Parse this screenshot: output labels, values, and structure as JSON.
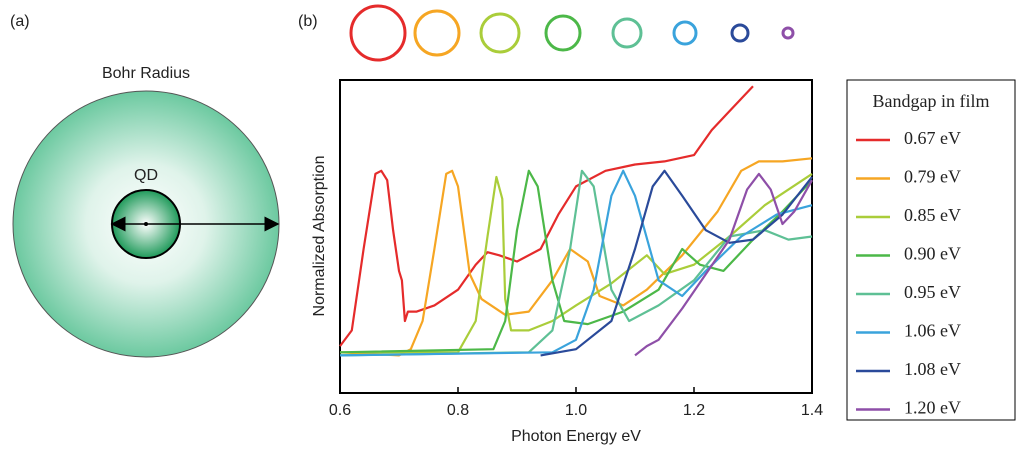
{
  "panel_a": {
    "label": "(a)",
    "title": "Bohr Radius",
    "inner_label": "QD"
  },
  "chart_data": {
    "type": "line",
    "panel_label": "(b)",
    "x_label": "Photon Energy  eV",
    "y_label": "Normalized  Absorption",
    "legend_title": "Bandgap in film",
    "legend": "right",
    "xlim": [
      0.6,
      1.4
    ],
    "ylim": [
      0,
      1
    ],
    "xticks": [
      0.6,
      0.8,
      {
        "value": 1,
        "label": "1.0"
      },
      1.2,
      1.4
    ],
    "series": [
      {
        "name": "0.67 eV",
        "color": "#e52b2b",
        "x": [
          0.6,
          0.62,
          0.64,
          0.66,
          0.67,
          0.68,
          0.69,
          0.7,
          0.705,
          0.71,
          0.715,
          0.73,
          0.76,
          0.8,
          0.83,
          0.85,
          0.87,
          0.9,
          0.94,
          0.97,
          1.0,
          1.05,
          1.1,
          1.15,
          1.2,
          1.23,
          1.26,
          1.3
        ],
        "values": [
          0.15,
          0.2,
          0.46,
          0.7,
          0.71,
          0.68,
          0.52,
          0.39,
          0.36,
          0.23,
          0.26,
          0.26,
          0.28,
          0.33,
          0.41,
          0.45,
          0.44,
          0.42,
          0.46,
          0.57,
          0.66,
          0.71,
          0.73,
          0.74,
          0.76,
          0.84,
          0.9,
          0.98
        ]
      },
      {
        "name": "0.79 eV",
        "color": "#f6a623",
        "x": [
          0.6,
          0.7,
          0.72,
          0.74,
          0.76,
          0.78,
          0.79,
          0.8,
          0.82,
          0.84,
          0.88,
          0.92,
          0.96,
          0.99,
          1.02,
          1.04,
          1.08,
          1.12,
          1.18,
          1.24,
          1.28,
          1.31,
          1.35,
          1.4
        ],
        "values": [
          0.13,
          0.12,
          0.14,
          0.23,
          0.46,
          0.7,
          0.71,
          0.66,
          0.38,
          0.3,
          0.25,
          0.26,
          0.36,
          0.46,
          0.42,
          0.31,
          0.28,
          0.33,
          0.44,
          0.58,
          0.71,
          0.74,
          0.74,
          0.75
        ]
      },
      {
        "name": "0.85 eV",
        "color": "#aacd3a",
        "x": [
          0.6,
          0.8,
          0.83,
          0.85,
          0.865,
          0.875,
          0.88,
          0.89,
          0.92,
          0.96,
          1.0,
          1.06,
          1.1,
          1.12,
          1.15,
          1.2,
          1.26,
          1.32,
          1.4
        ],
        "values": [
          0.13,
          0.13,
          0.23,
          0.5,
          0.69,
          0.62,
          0.3,
          0.2,
          0.2,
          0.23,
          0.28,
          0.35,
          0.41,
          0.44,
          0.38,
          0.41,
          0.5,
          0.6,
          0.7
        ]
      },
      {
        "name": "0.90 eV",
        "color": "#4cb848",
        "x": [
          0.6,
          0.86,
          0.88,
          0.9,
          0.92,
          0.935,
          0.96,
          0.98,
          1.02,
          1.08,
          1.14,
          1.18,
          1.21,
          1.25,
          1.3,
          1.35,
          1.4
        ],
        "values": [
          0.13,
          0.14,
          0.23,
          0.52,
          0.71,
          0.66,
          0.36,
          0.23,
          0.22,
          0.26,
          0.33,
          0.46,
          0.41,
          0.39,
          0.49,
          0.58,
          0.68
        ]
      },
      {
        "name": "0.95 eV",
        "color": "#5ec095",
        "x": [
          0.6,
          0.92,
          0.96,
          0.99,
          1.01,
          1.03,
          1.06,
          1.09,
          1.14,
          1.2,
          1.26,
          1.32,
          1.36,
          1.4
        ],
        "values": [
          0.12,
          0.13,
          0.2,
          0.46,
          0.71,
          0.66,
          0.33,
          0.23,
          0.28,
          0.36,
          0.5,
          0.52,
          0.49,
          0.5
        ]
      },
      {
        "name": "1.06 eV",
        "color": "#3aa3dc",
        "x": [
          0.6,
          0.96,
          1.0,
          1.03,
          1.06,
          1.08,
          1.1,
          1.14,
          1.18,
          1.22,
          1.28,
          1.34,
          1.4
        ],
        "values": [
          0.12,
          0.13,
          0.17,
          0.33,
          0.63,
          0.71,
          0.63,
          0.36,
          0.31,
          0.39,
          0.5,
          0.57,
          0.6
        ]
      },
      {
        "name": "1.08 eV",
        "color": "#2a4a9a",
        "x": [
          0.94,
          1.0,
          1.06,
          1.1,
          1.13,
          1.15,
          1.18,
          1.22,
          1.26,
          1.3,
          1.35,
          1.4
        ],
        "values": [
          0.12,
          0.14,
          0.23,
          0.46,
          0.66,
          0.71,
          0.63,
          0.52,
          0.48,
          0.49,
          0.57,
          0.69
        ]
      },
      {
        "name": "1.20 eV",
        "color": "#8e4fa8",
        "x": [
          1.1,
          1.12,
          1.14,
          1.18,
          1.22,
          1.26,
          1.29,
          1.31,
          1.33,
          1.35,
          1.37,
          1.4
        ],
        "values": [
          0.12,
          0.15,
          0.17,
          0.27,
          0.38,
          0.49,
          0.65,
          0.7,
          0.65,
          0.54,
          0.58,
          0.68
        ]
      }
    ]
  }
}
